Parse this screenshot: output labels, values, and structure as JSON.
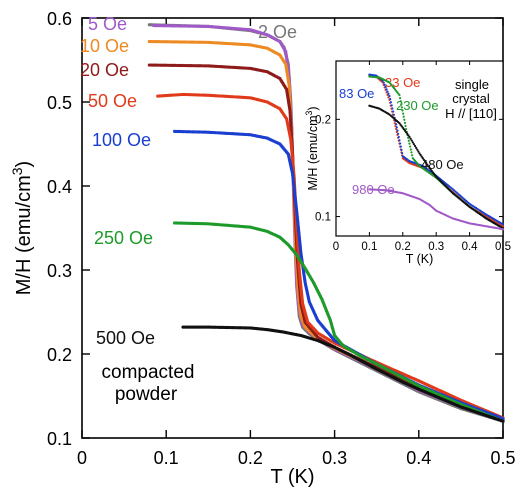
{
  "chart_data": [
    {
      "type": "scatter",
      "xlabel": "T (K)",
      "ylabel_parts": {
        "pre": "M/H (emu/cm",
        "sup": "3",
        "post": ")"
      },
      "xlim": [
        0,
        0.5
      ],
      "ylim": [
        0.1,
        0.6
      ],
      "xticks": [
        "0",
        "0.1",
        "0.2",
        "0.3",
        "0.4",
        "0.5"
      ],
      "yticks": [
        "0.1",
        "0.2",
        "0.3",
        "0.4",
        "0.5",
        "0.6"
      ],
      "annotation": [
        "compacted",
        "powder"
      ],
      "series": [
        {
          "name": "2 Oe",
          "color": "#777777",
          "points": [
            [
              0.08,
              0.592
            ],
            [
              0.15,
              0.59
            ],
            [
              0.2,
              0.585
            ],
            [
              0.22,
              0.58
            ],
            [
              0.235,
              0.572
            ],
            [
              0.24,
              0.565
            ],
            [
              0.245,
              0.545
            ],
            [
              0.248,
              0.5
            ],
            [
              0.25,
              0.44
            ],
            [
              0.252,
              0.38
            ],
            [
              0.254,
              0.32
            ],
            [
              0.256,
              0.27
            ],
            [
              0.258,
              0.245
            ],
            [
              0.262,
              0.232
            ],
            [
              0.27,
              0.224
            ],
            [
              0.28,
              0.217
            ],
            [
              0.3,
              0.205
            ],
            [
              0.33,
              0.19
            ],
            [
              0.37,
              0.17
            ],
            [
              0.4,
              0.155
            ],
            [
              0.45,
              0.135
            ],
            [
              0.5,
              0.12
            ]
          ]
        },
        {
          "name": "5 Oe",
          "color": "#a05ac8",
          "points": [
            [
              0.085,
              0.591
            ],
            [
              0.15,
              0.59
            ],
            [
              0.2,
              0.586
            ],
            [
              0.22,
              0.58
            ],
            [
              0.235,
              0.572
            ],
            [
              0.242,
              0.56
            ],
            [
              0.246,
              0.53
            ],
            [
              0.249,
              0.47
            ],
            [
              0.251,
              0.4
            ],
            [
              0.253,
              0.33
            ],
            [
              0.255,
              0.28
            ],
            [
              0.258,
              0.25
            ],
            [
              0.262,
              0.235
            ],
            [
              0.27,
              0.226
            ],
            [
              0.28,
              0.218
            ],
            [
              0.3,
              0.206
            ],
            [
              0.35,
              0.182
            ],
            [
              0.4,
              0.157
            ],
            [
              0.45,
              0.137
            ],
            [
              0.5,
              0.121
            ]
          ]
        },
        {
          "name": "10 Oe",
          "color": "#ee8a22",
          "points": [
            [
              0.08,
              0.572
            ],
            [
              0.15,
              0.571
            ],
            [
              0.2,
              0.568
            ],
            [
              0.22,
              0.564
            ],
            [
              0.235,
              0.556
            ],
            [
              0.242,
              0.545
            ],
            [
              0.246,
              0.52
            ],
            [
              0.249,
              0.46
            ],
            [
              0.252,
              0.38
            ],
            [
              0.254,
              0.32
            ],
            [
              0.257,
              0.27
            ],
            [
              0.26,
              0.245
            ],
            [
              0.265,
              0.232
            ],
            [
              0.28,
              0.218
            ],
            [
              0.3,
              0.207
            ],
            [
              0.35,
              0.183
            ],
            [
              0.4,
              0.158
            ],
            [
              0.45,
              0.138
            ],
            [
              0.5,
              0.121
            ]
          ]
        },
        {
          "name": "20 Oe",
          "color": "#8e1b1b",
          "points": [
            [
              0.08,
              0.544
            ],
            [
              0.15,
              0.543
            ],
            [
              0.2,
              0.54
            ],
            [
              0.22,
              0.536
            ],
            [
              0.235,
              0.528
            ],
            [
              0.243,
              0.515
            ],
            [
              0.247,
              0.49
            ],
            [
              0.25,
              0.44
            ],
            [
              0.253,
              0.37
            ],
            [
              0.256,
              0.31
            ],
            [
              0.26,
              0.26
            ],
            [
              0.265,
              0.238
            ],
            [
              0.28,
              0.22
            ],
            [
              0.3,
              0.208
            ],
            [
              0.35,
              0.184
            ],
            [
              0.4,
              0.16
            ],
            [
              0.45,
              0.14
            ],
            [
              0.5,
              0.122
            ]
          ]
        },
        {
          "name": "50 Oe",
          "color": "#e03a1a",
          "points": [
            [
              0.09,
              0.507
            ],
            [
              0.12,
              0.509
            ],
            [
              0.15,
              0.508
            ],
            [
              0.2,
              0.505
            ],
            [
              0.22,
              0.5
            ],
            [
              0.235,
              0.492
            ],
            [
              0.243,
              0.48
            ],
            [
              0.248,
              0.455
            ],
            [
              0.252,
              0.41
            ],
            [
              0.255,
              0.35
            ],
            [
              0.258,
              0.3
            ],
            [
              0.262,
              0.26
            ],
            [
              0.268,
              0.238
            ],
            [
              0.28,
              0.225
            ],
            [
              0.3,
              0.213
            ],
            [
              0.35,
              0.19
            ],
            [
              0.4,
              0.168
            ],
            [
              0.45,
              0.145
            ],
            [
              0.5,
              0.124
            ]
          ]
        },
        {
          "name": "100 Oe",
          "color": "#1a3fd0",
          "points": [
            [
              0.11,
              0.465
            ],
            [
              0.15,
              0.464
            ],
            [
              0.2,
              0.461
            ],
            [
              0.22,
              0.457
            ],
            [
              0.235,
              0.45
            ],
            [
              0.245,
              0.438
            ],
            [
              0.25,
              0.415
            ],
            [
              0.255,
              0.37
            ],
            [
              0.26,
              0.32
            ],
            [
              0.265,
              0.285
            ],
            [
              0.27,
              0.262
            ],
            [
              0.28,
              0.24
            ],
            [
              0.29,
              0.228
            ],
            [
              0.3,
              0.216
            ],
            [
              0.35,
              0.188
            ],
            [
              0.4,
              0.163
            ],
            [
              0.45,
              0.142
            ],
            [
              0.5,
              0.123
            ]
          ]
        },
        {
          "name": "250 Oe",
          "color": "#1e9a2a",
          "points": [
            [
              0.11,
              0.356
            ],
            [
              0.15,
              0.355
            ],
            [
              0.2,
              0.351
            ],
            [
              0.22,
              0.346
            ],
            [
              0.235,
              0.339
            ],
            [
              0.245,
              0.33
            ],
            [
              0.255,
              0.318
            ],
            [
              0.265,
              0.302
            ],
            [
              0.275,
              0.285
            ],
            [
              0.285,
              0.265
            ],
            [
              0.295,
              0.24
            ],
            [
              0.3,
              0.222
            ],
            [
              0.31,
              0.21
            ],
            [
              0.33,
              0.198
            ],
            [
              0.35,
              0.188
            ],
            [
              0.4,
              0.162
            ],
            [
              0.45,
              0.14
            ],
            [
              0.5,
              0.12
            ]
          ]
        },
        {
          "name": "500 Oe",
          "color": "#111111",
          "points": [
            [
              0.12,
              0.232
            ],
            [
              0.15,
              0.232
            ],
            [
              0.2,
              0.231
            ],
            [
              0.22,
              0.229
            ],
            [
              0.24,
              0.226
            ],
            [
              0.26,
              0.222
            ],
            [
              0.28,
              0.216
            ],
            [
              0.3,
              0.208
            ],
            [
              0.32,
              0.198
            ],
            [
              0.35,
              0.182
            ],
            [
              0.38,
              0.167
            ],
            [
              0.4,
              0.158
            ],
            [
              0.45,
              0.137
            ],
            [
              0.5,
              0.12
            ]
          ]
        }
      ]
    },
    {
      "type": "scatter",
      "xlabel": "T (K)",
      "ylabel_parts": {
        "pre": "M/H (emu/cm",
        "sup": "3",
        "post": ")"
      },
      "xlim": [
        0,
        0.5
      ],
      "ylim": [
        0.08,
        0.26
      ],
      "xticks": [
        "0",
        "0.1",
        "0.2",
        "0.3",
        "0.4",
        "0.5"
      ],
      "yticks": [
        "0.1",
        "0.2"
      ],
      "annotation": [
        "single",
        "crystal",
        "H // [110]"
      ],
      "series": [
        {
          "name": "33 Oe",
          "color": "#e03a1a",
          "points": [
            [
              0.1,
              0.245
            ],
            [
              0.12,
              0.244
            ],
            [
              0.14,
              0.238
            ],
            [
              0.16,
              0.22
            ],
            [
              0.18,
              0.19
            ],
            [
              0.2,
              0.16
            ],
            [
              0.22,
              0.155
            ],
            [
              0.26,
              0.15
            ],
            [
              0.3,
              0.14
            ],
            [
              0.35,
              0.125
            ],
            [
              0.4,
              0.11
            ],
            [
              0.45,
              0.1
            ],
            [
              0.5,
              0.09
            ]
          ]
        },
        {
          "name": "83 Oe",
          "color": "#1a3fd0",
          "points": [
            [
              0.1,
              0.246
            ],
            [
              0.12,
              0.245
            ],
            [
              0.14,
              0.24
            ],
            [
              0.16,
              0.224
            ],
            [
              0.18,
              0.195
            ],
            [
              0.2,
              0.162
            ],
            [
              0.22,
              0.157
            ],
            [
              0.26,
              0.152
            ],
            [
              0.3,
              0.142
            ],
            [
              0.35,
              0.128
            ],
            [
              0.4,
              0.113
            ],
            [
              0.45,
              0.102
            ],
            [
              0.5,
              0.092
            ]
          ]
        },
        {
          "name": "230 Oe",
          "color": "#1e9a2a",
          "points": [
            [
              0.1,
              0.244
            ],
            [
              0.13,
              0.243
            ],
            [
              0.16,
              0.238
            ],
            [
              0.19,
              0.225
            ],
            [
              0.21,
              0.19
            ],
            [
              0.23,
              0.16
            ],
            [
              0.25,
              0.152
            ],
            [
              0.3,
              0.14
            ],
            [
              0.35,
              0.124
            ],
            [
              0.4,
              0.11
            ],
            [
              0.45,
              0.098
            ],
            [
              0.5,
              0.088
            ]
          ]
        },
        {
          "name": "480 Oe",
          "color": "#111111",
          "points": [
            [
              0.1,
              0.214
            ],
            [
              0.13,
              0.211
            ],
            [
              0.16,
              0.205
            ],
            [
              0.19,
              0.196
            ],
            [
              0.22,
              0.182
            ],
            [
              0.25,
              0.165
            ],
            [
              0.28,
              0.15
            ],
            [
              0.3,
              0.141
            ],
            [
              0.35,
              0.124
            ],
            [
              0.4,
              0.11
            ],
            [
              0.45,
              0.098
            ],
            [
              0.5,
              0.088
            ]
          ]
        },
        {
          "name": "980 Oe",
          "color": "#a05ac8",
          "points": [
            [
              0.1,
              0.128
            ],
            [
              0.15,
              0.127
            ],
            [
              0.2,
              0.124
            ],
            [
              0.25,
              0.118
            ],
            [
              0.28,
              0.112
            ],
            [
              0.3,
              0.106
            ],
            [
              0.35,
              0.098
            ],
            [
              0.4,
              0.093
            ],
            [
              0.45,
              0.09
            ],
            [
              0.5,
              0.087
            ]
          ]
        }
      ]
    }
  ]
}
